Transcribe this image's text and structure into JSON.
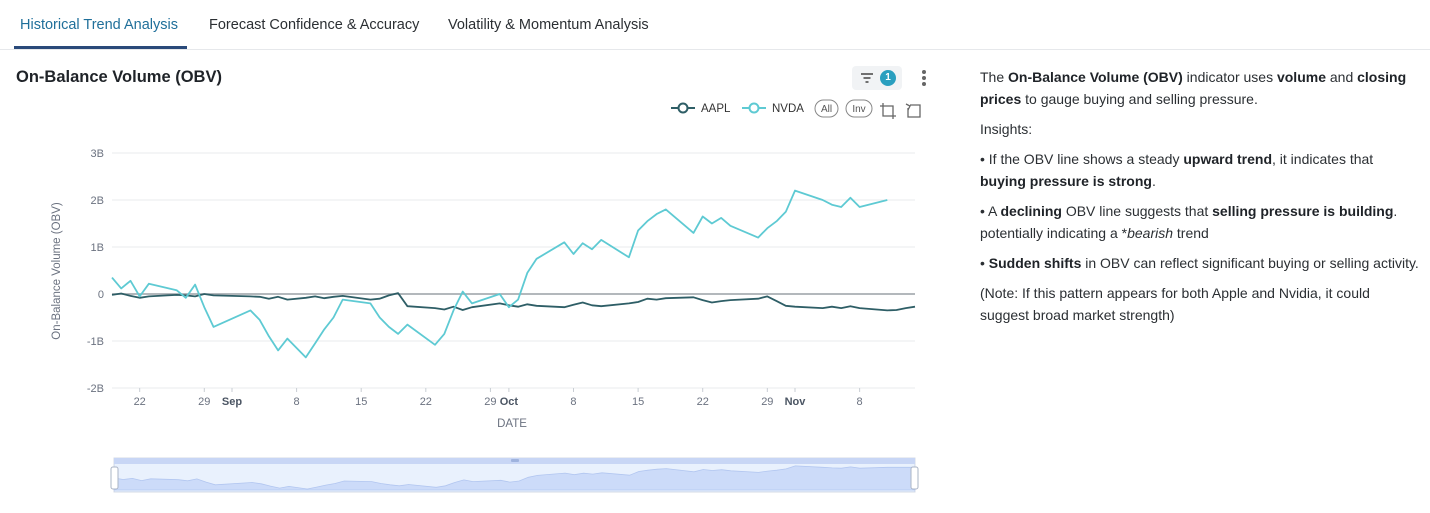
{
  "tabs": [
    {
      "label": "Historical Trend Analysis",
      "active": true
    },
    {
      "label": "Forecast Confidence & Accuracy",
      "active": false
    },
    {
      "label": "Volatility & Momentum Analysis",
      "active": false
    }
  ],
  "chart_header": {
    "title": "On-Balance Volume (OBV)",
    "filter_count": "1",
    "filter_icon": "filter-icon",
    "menu_icon": "kebab-menu-icon"
  },
  "toolbar": {
    "all_label": "All",
    "inv_label": "Inv",
    "zoom_icon": "crop-zoom-icon",
    "reset_icon": "zoom-reset-icon"
  },
  "colors": {
    "accent": "#1f6f9a",
    "AAPL": "#2e5e66",
    "NVDA": "#5ecad3",
    "grid": "#e8ebee",
    "slider_fill": "#dce5fa"
  },
  "chart_data": {
    "type": "line",
    "xlabel": "DATE",
    "ylabel": "On-Balance Volume (OBV)",
    "ylim": [
      -2,
      3
    ],
    "y_unit": "B",
    "y_ticks": [
      "3B",
      "2B",
      "1B",
      "0",
      "-1B",
      "-2B"
    ],
    "x_ticks": [
      {
        "label": "22",
        "date": "2024-08-22",
        "bold": false
      },
      {
        "label": "29",
        "date": "2024-08-29",
        "bold": false
      },
      {
        "label": "Sep",
        "date": "2024-09-01",
        "bold": true
      },
      {
        "label": "8",
        "date": "2024-09-08",
        "bold": false
      },
      {
        "label": "15",
        "date": "2024-09-15",
        "bold": false
      },
      {
        "label": "22",
        "date": "2024-09-22",
        "bold": false
      },
      {
        "label": "29",
        "date": "2024-09-29",
        "bold": false
      },
      {
        "label": "Oct",
        "date": "2024-10-01",
        "bold": true
      },
      {
        "label": "8",
        "date": "2024-10-08",
        "bold": false
      },
      {
        "label": "15",
        "date": "2024-10-15",
        "bold": false
      },
      {
        "label": "22",
        "date": "2024-10-22",
        "bold": false
      },
      {
        "label": "29",
        "date": "2024-10-29",
        "bold": false
      },
      {
        "label": "Nov",
        "date": "2024-11-01",
        "bold": true
      },
      {
        "label": "8",
        "date": "2024-11-08",
        "bold": false
      }
    ],
    "x_range": [
      "2024-08-19",
      "2024-11-14"
    ],
    "legend_position": "top-right",
    "grid": true,
    "series": [
      {
        "name": "AAPL",
        "points": [
          [
            "2024-08-19",
            -0.02
          ],
          [
            "2024-08-20",
            0.01
          ],
          [
            "2024-08-21",
            -0.04
          ],
          [
            "2024-08-22",
            -0.08
          ],
          [
            "2024-08-23",
            -0.05
          ],
          [
            "2024-08-26",
            -0.02
          ],
          [
            "2024-08-27",
            -0.03
          ],
          [
            "2024-08-28",
            -0.05
          ],
          [
            "2024-08-29",
            0.0
          ],
          [
            "2024-08-30",
            -0.03
          ],
          [
            "2024-09-03",
            -0.05
          ],
          [
            "2024-09-04",
            -0.06
          ],
          [
            "2024-09-05",
            -0.1
          ],
          [
            "2024-09-06",
            -0.06
          ],
          [
            "2024-09-07",
            -0.12
          ],
          [
            "2024-09-09",
            -0.08
          ],
          [
            "2024-09-10",
            -0.05
          ],
          [
            "2024-09-11",
            -0.09
          ],
          [
            "2024-09-12",
            -0.06
          ],
          [
            "2024-09-13",
            -0.04
          ],
          [
            "2024-09-16",
            -0.12
          ],
          [
            "2024-09-17",
            -0.1
          ],
          [
            "2024-09-18",
            -0.03
          ],
          [
            "2024-09-19",
            0.02
          ],
          [
            "2024-09-20",
            -0.26
          ],
          [
            "2024-09-23",
            -0.3
          ],
          [
            "2024-09-24",
            -0.33
          ],
          [
            "2024-09-25",
            -0.27
          ],
          [
            "2024-09-26",
            -0.34
          ],
          [
            "2024-09-27",
            -0.28
          ],
          [
            "2024-09-30",
            -0.2
          ],
          [
            "2024-10-01",
            -0.24
          ],
          [
            "2024-10-02",
            -0.27
          ],
          [
            "2024-10-03",
            -0.22
          ],
          [
            "2024-10-04",
            -0.25
          ],
          [
            "2024-10-07",
            -0.28
          ],
          [
            "2024-10-08",
            -0.23
          ],
          [
            "2024-10-09",
            -0.18
          ],
          [
            "2024-10-10",
            -0.24
          ],
          [
            "2024-10-11",
            -0.26
          ],
          [
            "2024-10-14",
            -0.2
          ],
          [
            "2024-10-15",
            -0.17
          ],
          [
            "2024-10-16",
            -0.1
          ],
          [
            "2024-10-17",
            -0.12
          ],
          [
            "2024-10-18",
            -0.09
          ],
          [
            "2024-10-21",
            -0.07
          ],
          [
            "2024-10-22",
            -0.13
          ],
          [
            "2024-10-23",
            -0.18
          ],
          [
            "2024-10-24",
            -0.15
          ],
          [
            "2024-10-25",
            -0.13
          ],
          [
            "2024-10-28",
            -0.1
          ],
          [
            "2024-10-29",
            -0.05
          ],
          [
            "2024-10-30",
            -0.15
          ],
          [
            "2024-10-31",
            -0.25
          ],
          [
            "2024-11-01",
            -0.27
          ],
          [
            "2024-11-04",
            -0.3
          ],
          [
            "2024-11-05",
            -0.27
          ],
          [
            "2024-11-06",
            -0.3
          ],
          [
            "2024-11-07",
            -0.26
          ],
          [
            "2024-11-08",
            -0.3
          ],
          [
            "2024-11-11",
            -0.35
          ],
          [
            "2024-11-12",
            -0.34
          ],
          [
            "2024-11-13",
            -0.3
          ],
          [
            "2024-11-14",
            -0.27
          ]
        ]
      },
      {
        "name": "NVDA",
        "points": [
          [
            "2024-08-19",
            0.35
          ],
          [
            "2024-08-20",
            0.12
          ],
          [
            "2024-08-21",
            0.28
          ],
          [
            "2024-08-22",
            -0.05
          ],
          [
            "2024-08-23",
            0.22
          ],
          [
            "2024-08-26",
            0.08
          ],
          [
            "2024-08-27",
            -0.08
          ],
          [
            "2024-08-28",
            0.2
          ],
          [
            "2024-08-29",
            -0.28
          ],
          [
            "2024-08-30",
            -0.7
          ],
          [
            "2024-09-03",
            -0.35
          ],
          [
            "2024-09-04",
            -0.55
          ],
          [
            "2024-09-05",
            -0.9
          ],
          [
            "2024-09-06",
            -1.2
          ],
          [
            "2024-09-07",
            -0.95
          ],
          [
            "2024-09-09",
            -1.35
          ],
          [
            "2024-09-10",
            -1.05
          ],
          [
            "2024-09-11",
            -0.75
          ],
          [
            "2024-09-12",
            -0.5
          ],
          [
            "2024-09-13",
            -0.12
          ],
          [
            "2024-09-16",
            -0.2
          ],
          [
            "2024-09-17",
            -0.5
          ],
          [
            "2024-09-18",
            -0.7
          ],
          [
            "2024-09-19",
            -0.85
          ],
          [
            "2024-09-20",
            -0.65
          ],
          [
            "2024-09-23",
            -1.08
          ],
          [
            "2024-09-24",
            -0.85
          ],
          [
            "2024-09-25",
            -0.35
          ],
          [
            "2024-09-26",
            0.05
          ],
          [
            "2024-09-27",
            -0.2
          ],
          [
            "2024-09-30",
            0.0
          ],
          [
            "2024-10-01",
            -0.28
          ],
          [
            "2024-10-02",
            -0.12
          ],
          [
            "2024-10-03",
            0.45
          ],
          [
            "2024-10-04",
            0.75
          ],
          [
            "2024-10-07",
            1.1
          ],
          [
            "2024-10-08",
            0.85
          ],
          [
            "2024-10-09",
            1.08
          ],
          [
            "2024-10-10",
            0.95
          ],
          [
            "2024-10-11",
            1.15
          ],
          [
            "2024-10-14",
            0.78
          ],
          [
            "2024-10-15",
            1.35
          ],
          [
            "2024-10-16",
            1.55
          ],
          [
            "2024-10-17",
            1.7
          ],
          [
            "2024-10-18",
            1.8
          ],
          [
            "2024-10-21",
            1.3
          ],
          [
            "2024-10-22",
            1.65
          ],
          [
            "2024-10-23",
            1.5
          ],
          [
            "2024-10-24",
            1.62
          ],
          [
            "2024-10-25",
            1.45
          ],
          [
            "2024-10-28",
            1.2
          ],
          [
            "2024-10-29",
            1.4
          ],
          [
            "2024-10-30",
            1.55
          ],
          [
            "2024-10-31",
            1.75
          ],
          [
            "2024-11-01",
            2.2
          ],
          [
            "2024-11-04",
            2.0
          ],
          [
            "2024-11-05",
            1.9
          ],
          [
            "2024-11-06",
            1.85
          ],
          [
            "2024-11-07",
            2.05
          ],
          [
            "2024-11-08",
            1.85
          ],
          [
            "2024-11-11",
            2.0
          ]
        ]
      }
    ]
  },
  "description": {
    "p1": [
      {
        "text": "The ",
        "bold": false
      },
      {
        "text": "On-Balance Volume (OBV)",
        "bold": true
      },
      {
        "text": " indicator uses ",
        "bold": false
      },
      {
        "text": "volume",
        "bold": true
      },
      {
        "text": " and ",
        "bold": false
      },
      {
        "text": "closing prices",
        "bold": true
      },
      {
        "text": " to gauge buying and selling pressure.",
        "bold": false
      }
    ],
    "insights_label": "Insights:",
    "bullet1": [
      {
        "text": "• If the OBV line shows a steady ",
        "bold": false
      },
      {
        "text": "upward trend",
        "bold": true
      },
      {
        "text": ", it indicates that ",
        "bold": false
      },
      {
        "text": "buying pressure is strong",
        "bold": true
      },
      {
        "text": ".",
        "bold": false
      }
    ],
    "bullet2": [
      {
        "text": "• A ",
        "bold": false
      },
      {
        "text": "declining",
        "bold": true
      },
      {
        "text": " OBV line suggests that ",
        "bold": false
      },
      {
        "text": "selling pressure is building",
        "bold": true
      },
      {
        "text": ". potentially indicating a *",
        "bold": false
      },
      {
        "text": "bearish",
        "bold": false,
        "italic": true
      },
      {
        "text": " trend",
        "bold": false
      }
    ],
    "bullet3": [
      {
        "text": "• ",
        "bold": false
      },
      {
        "text": "Sudden shifts",
        "bold": true
      },
      {
        "text": " in OBV can reflect significant buying or selling activity.",
        "bold": false
      }
    ],
    "note": "(Note: If this pattern appears for both Apple and Nvidia, it could suggest broad market strength)"
  }
}
